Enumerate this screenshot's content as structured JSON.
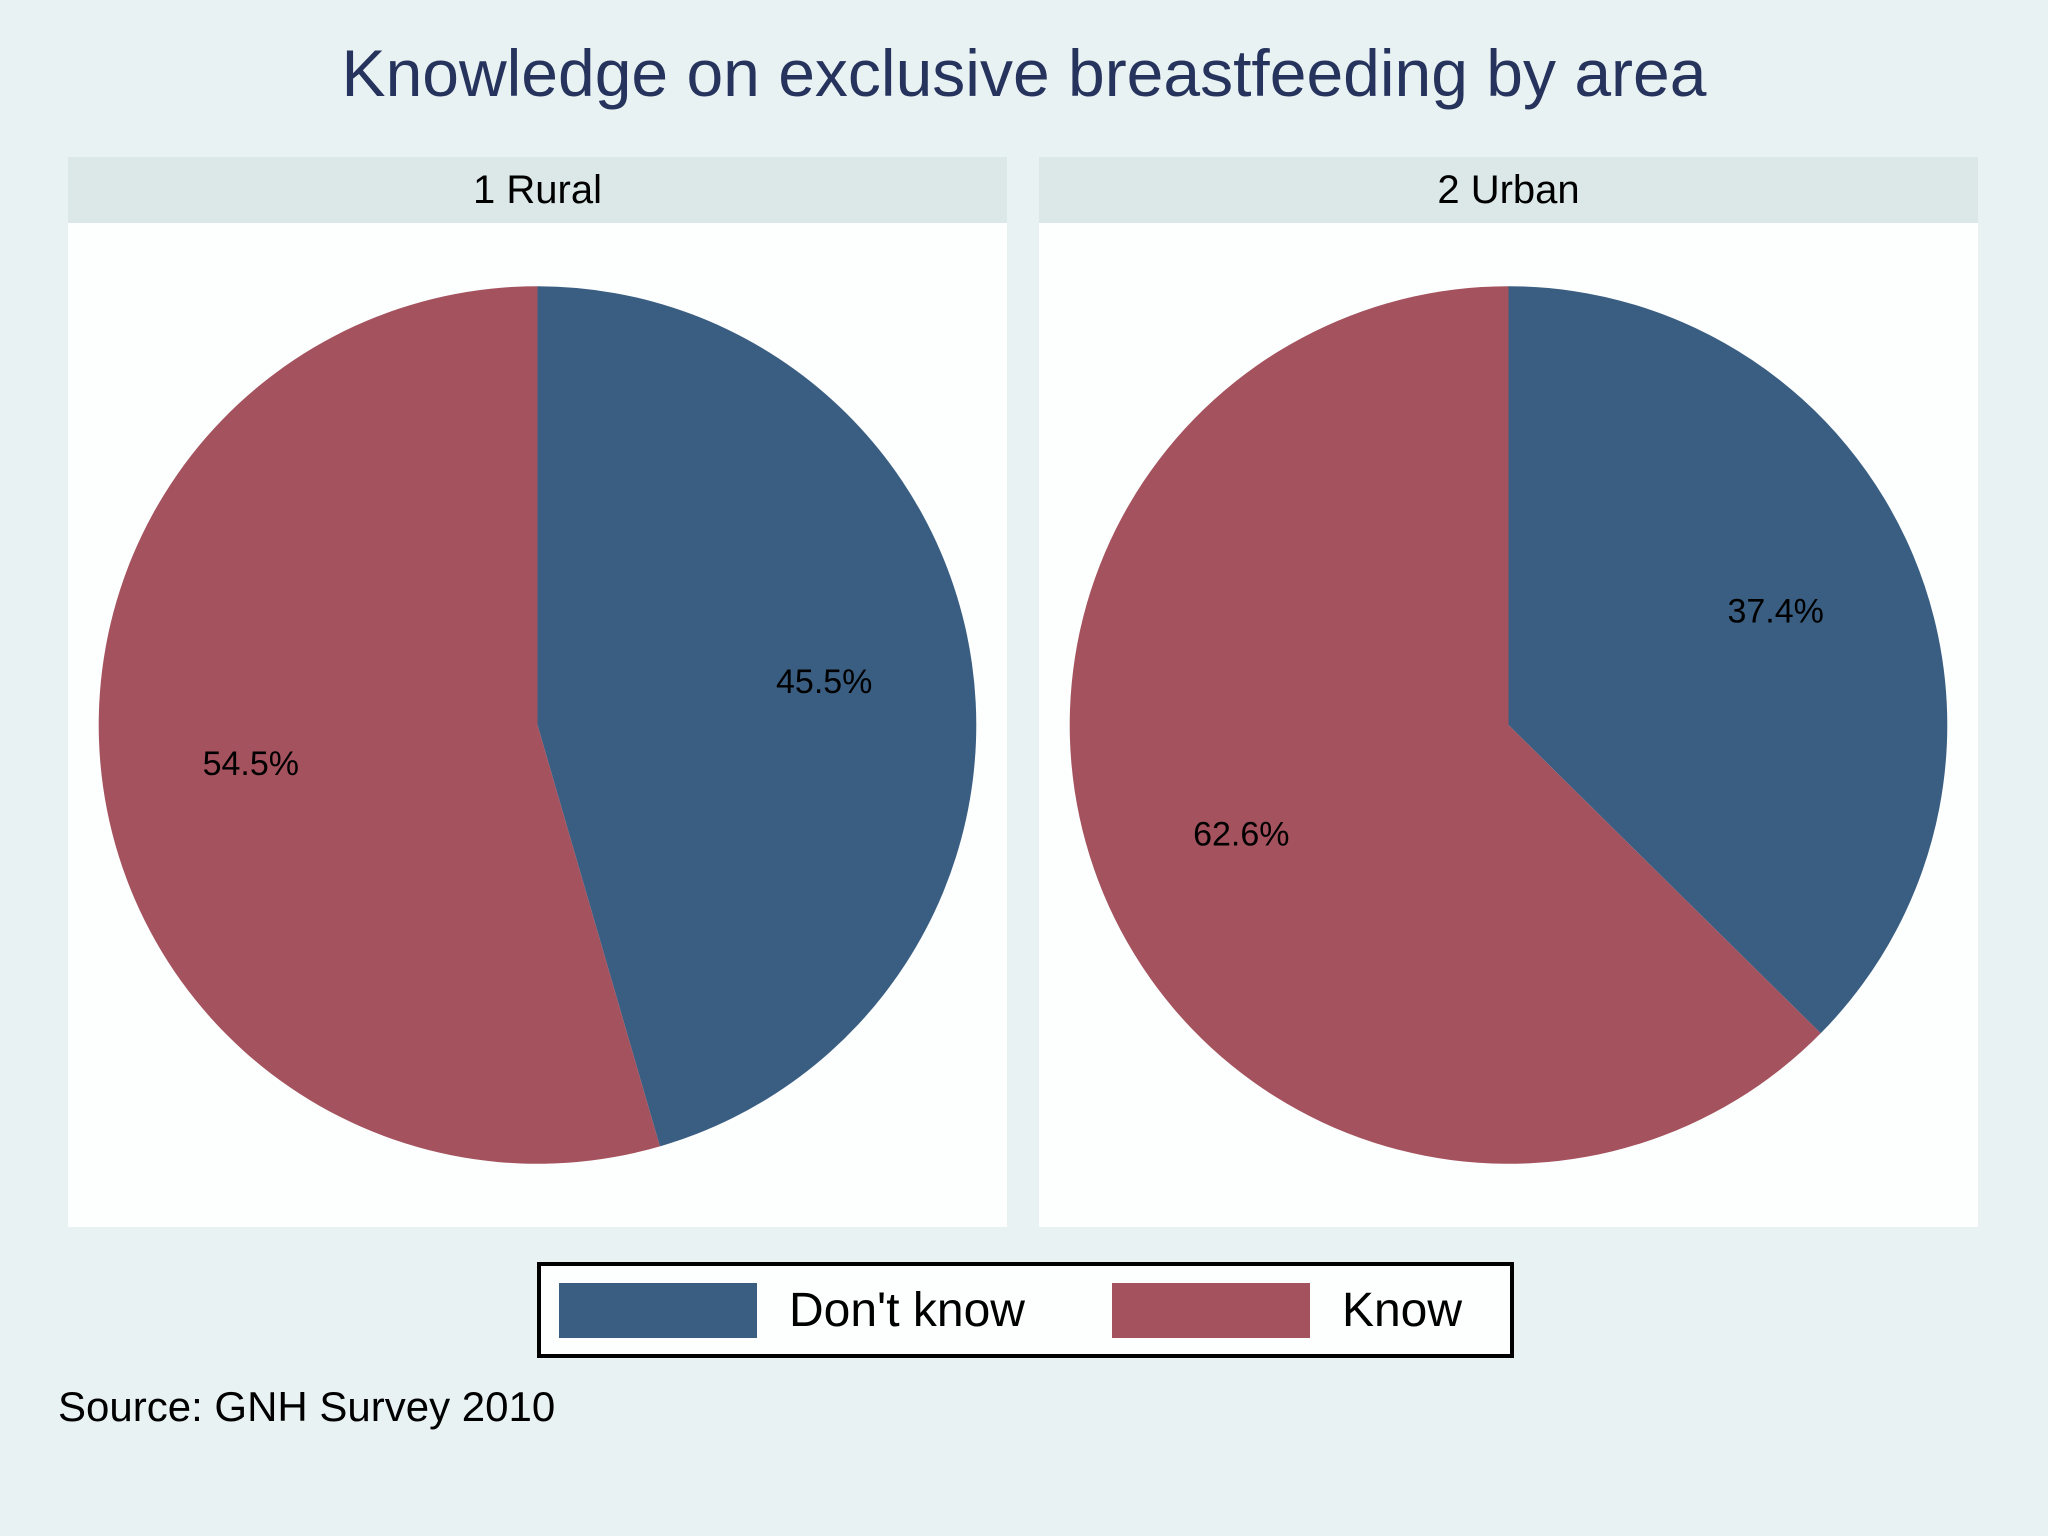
{
  "title": "Knowledge on exclusive breastfeeding by area",
  "source_note": "Source: GNH Survey 2010",
  "colors": {
    "background": "#E9F2F3",
    "panel_header_band": "#DCE7E8",
    "plot_region": "#FDFEFE",
    "title_text": "#26335C",
    "dont_know_blue": "#3A5E81",
    "know_maroon": "#A4525E",
    "label_text": "#000000",
    "legend_border": "#000000"
  },
  "legend": {
    "items": [
      {
        "label": "Don't know",
        "color": "#3A5E81"
      },
      {
        "label": "Know",
        "color": "#A4525E"
      }
    ],
    "position": "bottom-center",
    "border": true
  },
  "chart_data": [
    {
      "type": "pie",
      "title": "1 Rural",
      "labels": [
        "Don't know",
        "Know"
      ],
      "values": [
        45.5,
        54.5
      ],
      "value_labels": [
        "45.5%",
        "54.5%"
      ],
      "colors": [
        "#3A5E81",
        "#A4525E"
      ],
      "start_angle_deg": 0,
      "direction": "clockwise",
      "label_radius_fraction": 0.66
    },
    {
      "type": "pie",
      "title": "2 Urban",
      "labels": [
        "Don't know",
        "Know"
      ],
      "values": [
        37.4,
        62.6
      ],
      "value_labels": [
        "37.4%",
        "62.6%"
      ],
      "colors": [
        "#3A5E81",
        "#A4525E"
      ],
      "start_angle_deg": 0,
      "direction": "clockwise",
      "label_radius_fraction": 0.66
    }
  ]
}
